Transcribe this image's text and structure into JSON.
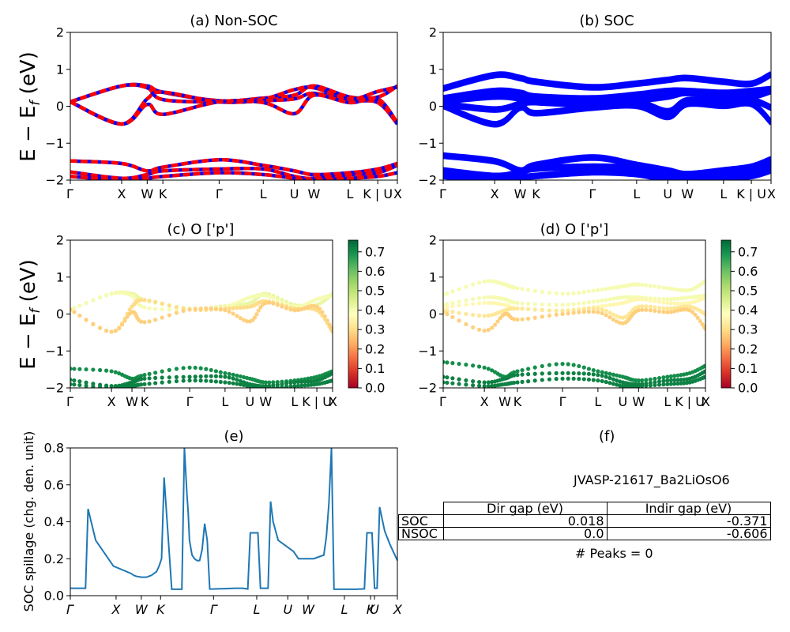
{
  "figure": {
    "ylabel_main": "E − E_f (eV)",
    "panels": {
      "a": {
        "title": "(a) Non-SOC"
      },
      "b": {
        "title": "(b) SOC"
      },
      "c": {
        "title": "(c)  O ['p']"
      },
      "d": {
        "title": "(d) O ['p']"
      },
      "e": {
        "title": "(e)",
        "ylabel": "SOC spillage (chg. den. unit)"
      },
      "f": {
        "title": "(f)"
      }
    },
    "band_kpath": [
      "Γ",
      "X",
      "W",
      "K",
      "Γ",
      "L",
      "U",
      "W",
      "L",
      "K | U",
      "X"
    ],
    "spill_kpath": [
      "Γ",
      "X",
      "W",
      "K",
      "Γ",
      "L",
      "U",
      "W",
      "L",
      "K",
      "U",
      "X"
    ],
    "colorbar": {
      "ticks": [
        "0.0",
        "0.1",
        "0.2",
        "0.3",
        "0.4",
        "0.5",
        "0.6",
        "0.7"
      ],
      "colormap": "RdYlGn"
    },
    "colors": {
      "nonsoc_red": "#ff0000",
      "nonsoc_blue": "#0000ff",
      "soc": "#0000ff",
      "spill": "#1f77b4"
    }
  },
  "info": {
    "jid": "JVASP-21617_Ba2LiOsO6",
    "table": {
      "headers": [
        "Dir gap (eV)",
        "Indir gap (eV)"
      ],
      "rows": [
        {
          "label": "SOC",
          "dir": "0.018",
          "indir": "-0.371"
        },
        {
          "label": "NSOC",
          "dir": "0.0",
          "indir": "-0.606"
        }
      ]
    },
    "peaks_text": "# Peaks = 0"
  },
  "chart_data": [
    {
      "type": "line",
      "title": "(a) Non-SOC",
      "ylabel": "E − E_f (eV)",
      "ylim": [
        -2,
        2
      ],
      "x_ticks": [
        "Γ",
        "X",
        "W",
        "K",
        "Γ",
        "L",
        "U",
        "W",
        "L",
        "K | U",
        "X"
      ],
      "series": [
        {
          "values": [
            0.12,
            0.55,
            0.55,
            0.38,
            0.15,
            0.22,
            0.3,
            0.55,
            0.25,
            0.25,
            0.55
          ]
        },
        {
          "values": [
            0.12,
            0.55,
            0.5,
            0.18,
            0.12,
            0.2,
            0.45,
            0.5,
            0.2,
            0.4,
            0.52
          ]
        },
        {
          "values": [
            0.12,
            -0.48,
            0.2,
            0.38,
            0.12,
            0.15,
            0.2,
            0.35,
            0.15,
            0.1,
            -0.48
          ]
        },
        {
          "values": [
            0.12,
            -0.48,
            0.05,
            -0.22,
            0.12,
            0.1,
            -0.2,
            0.3,
            0.1,
            0.2,
            -0.45
          ]
        },
        {
          "values": [
            -1.48,
            -1.55,
            -1.75,
            -1.65,
            -1.45,
            -1.6,
            -1.75,
            -1.85,
            -1.8,
            -1.7,
            -1.55
          ]
        },
        {
          "values": [
            -1.78,
            -1.95,
            -1.85,
            -1.75,
            -1.7,
            -1.7,
            -1.9,
            -1.95,
            -1.85,
            -1.8,
            -1.6
          ]
        },
        {
          "values": [
            -1.9,
            -2.0,
            -1.95,
            -1.9,
            -1.8,
            -1.85,
            -1.95,
            -2.0,
            -1.95,
            -1.9,
            -1.8
          ]
        }
      ]
    },
    {
      "type": "line",
      "title": "(b) SOC",
      "ylim": [
        -2,
        2
      ],
      "x_ticks": [
        "Γ",
        "X",
        "W",
        "K",
        "Γ",
        "L",
        "U",
        "W",
        "L",
        "K | U",
        "X"
      ],
      "series": [
        {
          "values": [
            0.52,
            0.88,
            0.8,
            0.7,
            0.55,
            0.65,
            0.75,
            0.8,
            0.7,
            0.65,
            0.9
          ]
        },
        {
          "values": [
            0.25,
            0.45,
            0.4,
            0.3,
            0.25,
            0.35,
            0.45,
            0.45,
            0.4,
            0.45,
            0.5
          ]
        },
        {
          "values": [
            0.18,
            0.3,
            0.25,
            0.15,
            0.1,
            0.2,
            0.3,
            0.4,
            0.3,
            0.3,
            0.45
          ]
        },
        {
          "values": [
            0.1,
            -0.05,
            0.1,
            0.15,
            0.08,
            0.15,
            -0.1,
            0.2,
            0.15,
            0.2,
            0.0
          ]
        },
        {
          "values": [
            0.05,
            -0.45,
            0.0,
            -0.15,
            0.0,
            0.05,
            -0.25,
            0.1,
            0.05,
            0.1,
            -0.4
          ]
        },
        {
          "values": [
            -1.3,
            -1.45,
            -1.7,
            -1.55,
            -1.35,
            -1.55,
            -1.7,
            -1.8,
            -1.7,
            -1.6,
            -1.4
          ]
        },
        {
          "values": [
            -1.7,
            -1.85,
            -1.75,
            -1.65,
            -1.6,
            -1.65,
            -1.85,
            -1.9,
            -1.8,
            -1.75,
            -1.55
          ]
        },
        {
          "values": [
            -1.85,
            -1.95,
            -1.9,
            -1.85,
            -1.75,
            -1.8,
            -1.95,
            -1.95,
            -1.9,
            -1.85,
            -1.7
          ]
        }
      ]
    },
    {
      "type": "scatter",
      "title": "(c)  O ['p']",
      "ylabel": "E − E_f (eV)",
      "ylim": [
        -2,
        2
      ],
      "x_ticks": [
        "Γ",
        "X",
        "W",
        "K",
        "Γ",
        "L",
        "U",
        "W",
        "L",
        "K | U",
        "X"
      ],
      "colorbar": {
        "ticks": [
          0.0,
          0.1,
          0.2,
          0.3,
          0.4,
          0.5,
          0.6,
          0.7
        ],
        "cmap": "RdYlGn"
      },
      "series": [
        {
          "weight": 0.42,
          "values": [
            0.12,
            0.55,
            0.55,
            0.38,
            0.15,
            0.22,
            0.3,
            0.55,
            0.25,
            0.25,
            0.55
          ]
        },
        {
          "weight": 0.4,
          "values": [
            0.12,
            0.55,
            0.5,
            0.18,
            0.12,
            0.2,
            0.45,
            0.5,
            0.2,
            0.4,
            0.52
          ]
        },
        {
          "weight": 0.3,
          "values": [
            0.12,
            -0.48,
            0.2,
            0.38,
            0.12,
            0.15,
            0.2,
            0.35,
            0.15,
            0.1,
            -0.48
          ]
        },
        {
          "weight": 0.28,
          "values": [
            0.12,
            -0.48,
            0.05,
            -0.22,
            0.12,
            0.1,
            -0.2,
            0.3,
            0.1,
            0.2,
            -0.45
          ]
        },
        {
          "weight": 0.7,
          "values": [
            -1.48,
            -1.55,
            -1.75,
            -1.65,
            -1.45,
            -1.6,
            -1.75,
            -1.85,
            -1.8,
            -1.7,
            -1.55
          ]
        },
        {
          "weight": 0.72,
          "values": [
            -1.78,
            -1.95,
            -1.85,
            -1.75,
            -1.7,
            -1.7,
            -1.9,
            -1.95,
            -1.85,
            -1.8,
            -1.6
          ]
        },
        {
          "weight": 0.72,
          "values": [
            -1.9,
            -2.0,
            -1.95,
            -1.9,
            -1.8,
            -1.85,
            -1.95,
            -2.0,
            -1.95,
            -1.9,
            -1.8
          ]
        }
      ]
    },
    {
      "type": "scatter",
      "title": "(d) O ['p']",
      "ylim": [
        -2,
        2
      ],
      "x_ticks": [
        "Γ",
        "X",
        "W",
        "K",
        "Γ",
        "L",
        "U",
        "W",
        "L",
        "K | U",
        "X"
      ],
      "colorbar": {
        "ticks": [
          0.0,
          0.1,
          0.2,
          0.3,
          0.4,
          0.5,
          0.6,
          0.7
        ],
        "cmap": "RdYlGn"
      },
      "series": [
        {
          "weight": 0.4,
          "values": [
            0.52,
            0.88,
            0.8,
            0.7,
            0.55,
            0.65,
            0.75,
            0.8,
            0.7,
            0.65,
            0.9
          ]
        },
        {
          "weight": 0.4,
          "values": [
            0.25,
            0.45,
            0.4,
            0.3,
            0.25,
            0.35,
            0.45,
            0.45,
            0.4,
            0.45,
            0.5
          ]
        },
        {
          "weight": 0.36,
          "values": [
            0.18,
            0.3,
            0.25,
            0.15,
            0.1,
            0.2,
            0.3,
            0.4,
            0.3,
            0.3,
            0.45
          ]
        },
        {
          "weight": 0.32,
          "values": [
            0.1,
            -0.05,
            0.1,
            0.15,
            0.08,
            0.15,
            -0.1,
            0.2,
            0.15,
            0.2,
            0.0
          ]
        },
        {
          "weight": 0.28,
          "values": [
            0.05,
            -0.45,
            0.0,
            -0.15,
            0.0,
            0.05,
            -0.25,
            0.1,
            0.05,
            0.1,
            -0.4
          ]
        },
        {
          "weight": 0.7,
          "values": [
            -1.3,
            -1.45,
            -1.7,
            -1.55,
            -1.35,
            -1.55,
            -1.7,
            -1.8,
            -1.7,
            -1.6,
            -1.4
          ]
        },
        {
          "weight": 0.72,
          "values": [
            -1.7,
            -1.85,
            -1.75,
            -1.65,
            -1.6,
            -1.65,
            -1.85,
            -1.9,
            -1.8,
            -1.75,
            -1.55
          ]
        },
        {
          "weight": 0.72,
          "values": [
            -1.85,
            -1.95,
            -1.9,
            -1.85,
            -1.75,
            -1.8,
            -1.95,
            -1.95,
            -1.9,
            -1.85,
            -1.7
          ]
        }
      ]
    },
    {
      "type": "line",
      "title": "(e)",
      "ylabel": "SOC spillage (chg. den. unit)",
      "ylim": [
        0,
        0.8
      ],
      "y_ticks": [
        0.0,
        0.2,
        0.4,
        0.6,
        0.8
      ],
      "x_ticks": [
        "Γ",
        "X",
        "W",
        "K",
        "Γ",
        "L",
        "U",
        "W",
        "L",
        "K",
        "U",
        "X"
      ],
      "x": [
        0,
        3,
        6,
        7,
        10,
        14,
        17,
        24,
        25,
        26,
        28,
        29,
        30,
        31,
        32,
        34,
        35,
        36,
        37,
        40,
        44,
        45,
        46,
        46.5,
        47,
        48,
        49,
        50,
        51,
        52,
        53,
        54,
        55,
        56,
        58,
        61,
        65,
        66,
        68,
        69,
        70,
        71,
        72,
        73,
        74,
        75,
        76,
        78,
        79,
        80,
        82,
        88,
        90,
        96,
        100,
        101,
        102,
        103,
        104,
        106,
        108,
        113,
        114,
        115,
        116,
        117,
        118,
        119,
        120,
        121,
        122,
        124,
        126,
        128,
        129
      ],
      "values": [
        0.04,
        0.04,
        0.04,
        0.47,
        0.3,
        0.22,
        0.16,
        0.12,
        0.11,
        0.105,
        0.1,
        0.1,
        0.1,
        0.105,
        0.11,
        0.13,
        0.16,
        0.2,
        0.64,
        0.035,
        0.035,
        0.8,
        0.55,
        0.45,
        0.3,
        0.22,
        0.2,
        0.19,
        0.19,
        0.25,
        0.39,
        0.3,
        0.036,
        0.036,
        0.037,
        0.038,
        0.04,
        0.04,
        0.04,
        0.038,
        0.036,
        0.34,
        0.34,
        0.34,
        0.34,
        0.04,
        0.04,
        0.04,
        0.51,
        0.4,
        0.3,
        0.24,
        0.2,
        0.2,
        0.22,
        0.32,
        0.5,
        0.8,
        0.035,
        0.035,
        0.035,
        0.035,
        0.036,
        0.036,
        0.037,
        0.34,
        0.34,
        0.34,
        0.04,
        0.04,
        0.48,
        0.35,
        0.28,
        0.22,
        0.19
      ]
    },
    {
      "type": "table",
      "title": "(f)",
      "columns": [
        "",
        "Dir gap (eV)",
        "Indir gap (eV)"
      ],
      "rows": [
        [
          "SOC",
          "0.018",
          "-0.371"
        ],
        [
          "NSOC",
          "0.0",
          "-0.606"
        ]
      ]
    }
  ]
}
